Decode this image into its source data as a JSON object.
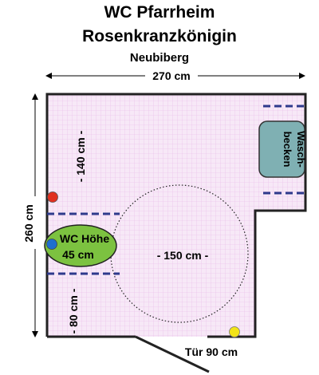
{
  "header": {
    "title_line1": "WC Pfarrheim",
    "title_line2": "Rosenkranzkönigin",
    "location": "Neubiberg"
  },
  "dimensions": {
    "width": "270 cm",
    "height": "260 cm",
    "dist_140": "- 140 cm -",
    "dist_80": "- 80 cm -",
    "turning_circle": "- 150 cm -",
    "door": "Tür 90 cm"
  },
  "fixtures": {
    "sink_line1": "Wasch-",
    "sink_line2": "becken",
    "wc_line1": "WC Höhe",
    "wc_line2": "45 cm"
  },
  "colors": {
    "floor": "#f7e8f7",
    "grid": "#e8b8e8",
    "wall": "#222222",
    "rail": "#2e3a8c",
    "sink": "#7fb0b3",
    "wc": "#7cc240",
    "red_dot": "#e03020",
    "blue_dot": "#1e6fd0",
    "yellow_dot": "#f2e418"
  }
}
